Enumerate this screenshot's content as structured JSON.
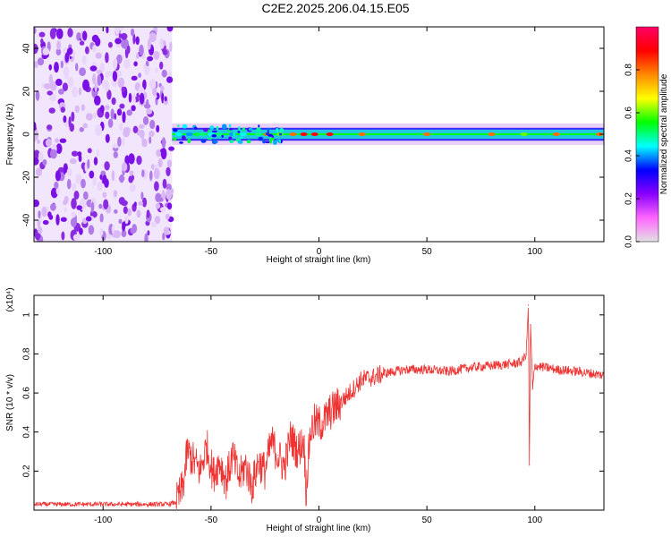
{
  "title": "C2E2.2025.206.04.15.E05",
  "colors": {
    "snr_line": "#ee3333",
    "noise": "#8a2be2",
    "frame": "#000000"
  },
  "chart_data": [
    {
      "id": "spectrogram",
      "type": "heatmap",
      "title": "C2E2.2025.206.04.15.E05",
      "xlabel": "Height of straight line (km)",
      "ylabel": "Frequency (Hz)",
      "xlim": [
        -132,
        132
      ],
      "ylim": [
        -50,
        50
      ],
      "x_ticks": [
        -100,
        -50,
        0,
        50,
        100
      ],
      "y_ticks": [
        40,
        20,
        0,
        -20,
        -40
      ],
      "colorbar": {
        "label": "Normalized spectral amplitude",
        "range": [
          0,
          1
        ],
        "ticks": [
          0.0,
          0.2,
          0.4,
          0.6,
          0.8
        ],
        "colormap": [
          "#e2e2e2",
          "#ff66ff",
          "#8800ff",
          "#0000ff",
          "#00ffff",
          "#00ff00",
          "#ffff00",
          "#ff8800",
          "#ff0000",
          "#ff0066"
        ]
      },
      "noise_region_x": [
        -132,
        -68
      ],
      "signal_band_hz": [
        -3,
        3
      ],
      "carrier_peaks": [
        {
          "x": -65,
          "amplitude": 0.45
        },
        {
          "x": -60,
          "amplitude": 0.4
        },
        {
          "x": -54,
          "amplitude": 0.5
        },
        {
          "x": -50,
          "amplitude": 0.45
        },
        {
          "x": -46,
          "amplitude": 0.5
        },
        {
          "x": -40,
          "amplitude": 0.4
        },
        {
          "x": -35,
          "amplitude": 0.45
        },
        {
          "x": -28,
          "amplitude": 0.5
        },
        {
          "x": -24,
          "amplitude": 0.8
        },
        {
          "x": -18,
          "amplitude": 0.6
        },
        {
          "x": -12,
          "amplitude": 0.8
        },
        {
          "x": -7,
          "amplitude": 0.9
        },
        {
          "x": -2,
          "amplitude": 0.9
        },
        {
          "x": 5,
          "amplitude": 0.9
        },
        {
          "x": 20,
          "amplitude": 0.8
        },
        {
          "x": 50,
          "amplitude": 0.8
        },
        {
          "x": 80,
          "amplitude": 0.8
        },
        {
          "x": 95,
          "amplitude": 0.6
        },
        {
          "x": 110,
          "amplitude": 0.8
        },
        {
          "x": 130,
          "amplitude": 0.8
        }
      ]
    },
    {
      "id": "snr",
      "type": "line",
      "xlabel": "Height of straight line (km)",
      "ylabel": "SNR (10 * v/v)",
      "y_multiplier": "(x10⁴)",
      "xlim": [
        -132,
        132
      ],
      "ylim": [
        0,
        1.1
      ],
      "x_ticks": [
        -100,
        -50,
        0,
        50,
        100
      ],
      "y_ticks": [
        0.2,
        0.4,
        0.6,
        0.8,
        1.0
      ],
      "series": [
        {
          "x": [
            -132,
            -100,
            -70,
            -66,
            -63,
            -61,
            -58,
            -55,
            -52,
            -49,
            -46,
            -43,
            -40,
            -37,
            -34,
            -31,
            -28,
            -25,
            -22,
            -19,
            -16,
            -13,
            -10,
            -7,
            -6,
            -4,
            -2,
            0,
            2,
            5,
            10,
            15,
            20,
            25,
            30,
            35,
            40,
            50,
            60,
            70,
            80,
            90,
            94,
            96,
            97,
            97.5,
            98,
            99,
            100,
            110,
            120,
            132
          ],
          "y": [
            0.03,
            0.03,
            0.03,
            0.04,
            0.12,
            0.3,
            0.25,
            0.2,
            0.33,
            0.18,
            0.25,
            0.15,
            0.28,
            0.16,
            0.23,
            0.12,
            0.25,
            0.2,
            0.35,
            0.28,
            0.22,
            0.38,
            0.3,
            0.36,
            0.1,
            0.4,
            0.45,
            0.44,
            0.45,
            0.5,
            0.55,
            0.61,
            0.67,
            0.68,
            0.7,
            0.71,
            0.72,
            0.72,
            0.71,
            0.73,
            0.74,
            0.75,
            0.76,
            0.8,
            1.05,
            0.23,
            0.95,
            0.62,
            0.74,
            0.72,
            0.71,
            0.69
          ]
        }
      ]
    }
  ]
}
